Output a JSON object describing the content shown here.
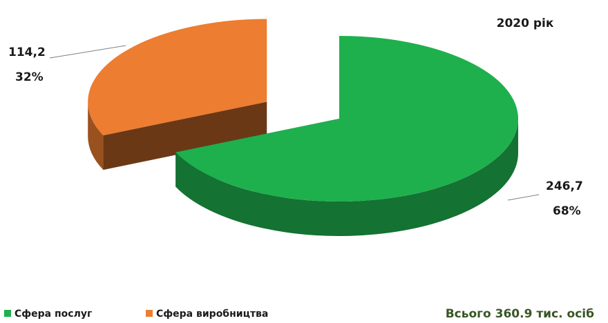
{
  "chart_data": {
    "type": "pie",
    "title": "2020 рік",
    "categories": [
      "Сфера послуг",
      "Сфера виробництва"
    ],
    "values": [
      246.7,
      114.2
    ],
    "value_labels": [
      "246,7",
      "114,2"
    ],
    "percent_labels": [
      "68%",
      "32%"
    ],
    "colors": [
      "#1eb04d",
      "#ed7d31"
    ],
    "annotation": "Всього 360.9 тис. осіб",
    "legend": "bottom-left"
  }
}
